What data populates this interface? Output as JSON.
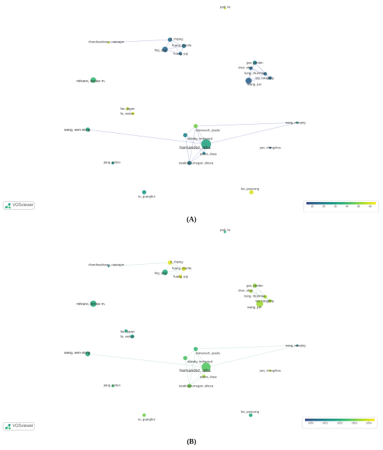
{
  "captions": {
    "a": "(A)",
    "b": "(B)"
  },
  "logo_text": "VOSviewer",
  "colors": {
    "viridis": [
      "#3b4a8a",
      "#2c718e",
      "#21918c",
      "#2aae7f",
      "#5ec962",
      "#b5de2b",
      "#fde725"
    ],
    "edge": "#9ea8d4"
  },
  "chart_data": [
    {
      "type": "network",
      "legend": {
        "ticks": [
          "10",
          "20",
          "30",
          "40",
          "50",
          "60"
        ],
        "range": [
          5,
          65
        ]
      },
      "nodes": [
        {
          "label": "park, ke",
          "v": 58
        },
        {
          "label": "li, zhiying",
          "v": 15
        },
        {
          "label": "chandrasekaran, natarajan",
          "v": 60
        },
        {
          "label": "huang, zhenlie",
          "v": 15
        },
        {
          "label": "ling, qing",
          "v": 14
        },
        {
          "label": "huang, yuji",
          "v": 15
        },
        {
          "label": "gao, yandan",
          "v": 20
        },
        {
          "label": "chen, shun",
          "v": 14
        },
        {
          "label": "kong, chunmiao",
          "v": 14
        },
        {
          "label": "tao, hongping",
          "v": 14
        },
        {
          "label": "wang, jun",
          "v": 12
        },
        {
          "label": "mitrano, denise m.",
          "v": 38
        },
        {
          "label": "lian, jiapan",
          "v": 58
        },
        {
          "label": "liu, weitao",
          "v": 60
        },
        {
          "label": "wang, wen-xiong",
          "v": 35
        },
        {
          "label": "domenech, josefa",
          "v": 48
        },
        {
          "label": "wang, xiaoqing",
          "v": 28
        },
        {
          "label": "alaraby, mohamed",
          "v": 22
        },
        {
          "label": "hernandez, alba",
          "v": 32
        },
        {
          "label": "abass, doaa",
          "v": 22
        },
        {
          "label": "yan, chongzhou",
          "v": 12
        },
        {
          "label": "jiang, zichen",
          "v": 25
        },
        {
          "label": "tavakolpournegari, alireza",
          "v": 18
        },
        {
          "label": "xu, guanghui",
          "v": 28
        },
        {
          "label": "lee, jaeseong",
          "v": 60
        }
      ]
    },
    {
      "type": "network",
      "legend": {
        "ticks": [
          "2020",
          "2021",
          "2022",
          "2023",
          "2024"
        ],
        "range": [
          2019.6,
          2024.4
        ]
      },
      "nodes": [
        {
          "label": "park, ke",
          "v": 2022.2
        },
        {
          "label": "li, zhiying",
          "v": 2024.0
        },
        {
          "label": "chandrasekaran, natarajan",
          "v": 2021.0
        },
        {
          "label": "huang, zhenlie",
          "v": 2024.0
        },
        {
          "label": "ling, qing",
          "v": 2021.8
        },
        {
          "label": "huang, yuji",
          "v": 2024.0
        },
        {
          "label": "gao, yandan",
          "v": 2023.3
        },
        {
          "label": "chen, shun",
          "v": 2023.5
        },
        {
          "label": "kong, chunmiao",
          "v": 2023.5
        },
        {
          "label": "tao, hongping",
          "v": 2023.4
        },
        {
          "label": "wang, jun",
          "v": 2023.4
        },
        {
          "label": "mitrano, denise m.",
          "v": 2021.9
        },
        {
          "label": "lian, jiapan",
          "v": 2021.7
        },
        {
          "label": "liu, weitao",
          "v": 2021.5
        },
        {
          "label": "wang, wen-xiong",
          "v": 2021.9
        },
        {
          "label": "domenech, josefa",
          "v": 2022.3
        },
        {
          "label": "wang, xiaoqing",
          "v": 2020.8
        },
        {
          "label": "alaraby, mohamed",
          "v": 2022.6
        },
        {
          "label": "hernandez, alba",
          "v": 2022.7
        },
        {
          "label": "abass, doaa",
          "v": 2023.5
        },
        {
          "label": "yan, chongzhou",
          "v": 2024.0
        },
        {
          "label": "jiang, zichen",
          "v": 2022.5
        },
        {
          "label": "tavakolpournegari, alireza",
          "v": 2023.0
        },
        {
          "label": "xu, guanghui",
          "v": 2023.0
        },
        {
          "label": "lee, jaeseong",
          "v": 2021.9
        }
      ]
    }
  ]
}
